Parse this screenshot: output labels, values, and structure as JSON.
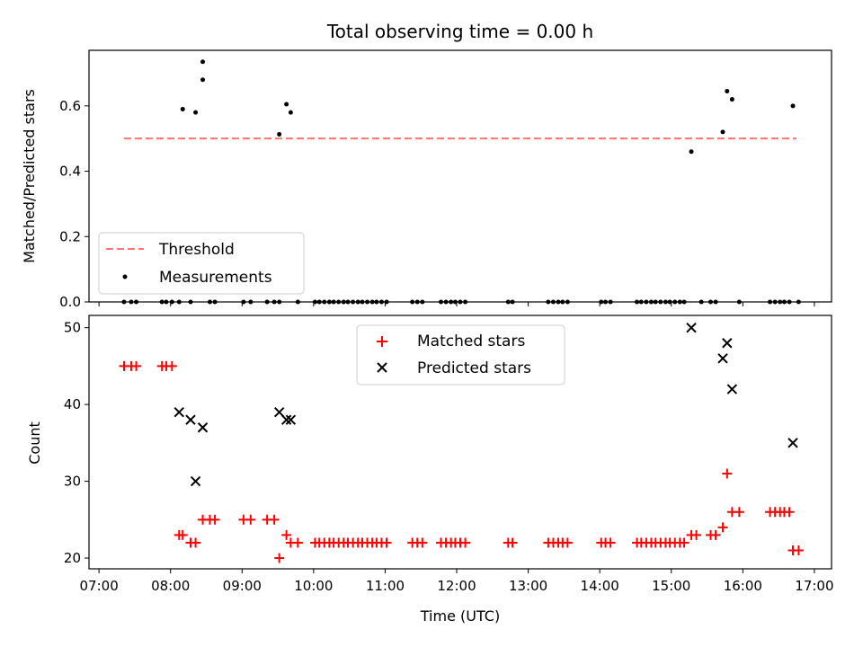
{
  "figure_title": "Total observing time = 0.00 h",
  "x_tick_labels": [
    "07:00",
    "08:00",
    "09:00",
    "10:00",
    "11:00",
    "12:00",
    "13:00",
    "14:00",
    "15:00",
    "16:00",
    "17:00"
  ],
  "colors": {
    "threshold": "#ff7373",
    "measurements": "#000000",
    "matched": "#ff0000",
    "predicted": "#000000"
  },
  "chart_data": [
    {
      "type": "scatter",
      "ylabel": "Matched/Predicted stars",
      "ylim": [
        0,
        0.77
      ],
      "xlim_hours": [
        6.86,
        17.24
      ],
      "y_ticks": [
        0.0,
        0.2,
        0.4,
        0.6
      ],
      "legend": {
        "placement": "lower-left",
        "entries": [
          "Threshold",
          "Measurements"
        ]
      },
      "threshold": {
        "name": "Threshold",
        "value": 0.5,
        "x_range": [
          7.35,
          16.75
        ],
        "style": "dashed"
      },
      "measurements": {
        "name": "Measurements",
        "x": [
          7.35,
          7.45,
          7.52,
          7.88,
          7.94,
          8.02,
          8.12,
          8.17,
          8.28,
          8.35,
          8.45,
          8.55,
          8.62,
          9.02,
          9.12,
          9.35,
          9.45,
          9.52,
          9.62,
          9.68,
          9.78,
          10.02,
          10.08,
          10.15,
          10.22,
          10.28,
          10.35,
          10.42,
          10.48,
          10.55,
          10.62,
          10.68,
          10.75,
          10.82,
          10.88,
          10.95,
          11.02,
          11.38,
          11.45,
          11.52,
          11.78,
          11.85,
          11.92,
          11.98,
          12.05,
          12.12,
          12.72,
          12.78,
          13.28,
          13.35,
          13.42,
          13.48,
          13.55,
          14.02,
          14.08,
          14.15,
          14.52,
          14.58,
          14.65,
          14.72,
          14.78,
          14.85,
          14.92,
          14.98,
          15.05,
          15.12,
          15.18,
          15.28,
          15.42,
          15.55,
          15.62,
          15.72,
          15.78,
          15.85,
          15.95,
          16.38,
          16.45,
          16.52,
          16.58,
          16.65,
          16.7,
          16.78
        ],
        "y": [
          0,
          0,
          0,
          0,
          0,
          0,
          0,
          0.59,
          0,
          0.58,
          0.735,
          0,
          0,
          0,
          0,
          0,
          0,
          0,
          0.605,
          0.58,
          0,
          0,
          0,
          0,
          0,
          0,
          0,
          0,
          0,
          0,
          0,
          0,
          0,
          0,
          0,
          0,
          0,
          0,
          0,
          0,
          0,
          0,
          0,
          0,
          0,
          0,
          0,
          0,
          0,
          0,
          0,
          0,
          0,
          0,
          0,
          0,
          0,
          0,
          0,
          0,
          0,
          0,
          0,
          0,
          0,
          0,
          0,
          0.46,
          0,
          0,
          0,
          0.52,
          0.645,
          0.62,
          0,
          0,
          0,
          0,
          0,
          0,
          0.6,
          0
        ],
        "y_extra_points": [
          {
            "x": 8.45,
            "y": 0.68
          },
          {
            "x": 9.52,
            "y": 0.513
          }
        ]
      }
    },
    {
      "type": "scatter",
      "xlabel": "Time (UTC)",
      "ylabel": "Count",
      "ylim": [
        18.6,
        51.6
      ],
      "xlim_hours": [
        6.86,
        17.24
      ],
      "y_ticks": [
        20,
        30,
        40,
        50
      ],
      "legend": {
        "placement": "upper-center",
        "entries": [
          "Matched stars",
          "Predicted stars"
        ]
      },
      "series": [
        {
          "name": "Matched stars",
          "marker": "plus",
          "x": [
            7.35,
            7.45,
            7.52,
            7.88,
            7.94,
            8.02,
            8.12,
            8.17,
            8.28,
            8.35,
            8.45,
            8.55,
            8.62,
            9.02,
            9.12,
            9.35,
            9.45,
            9.52,
            9.62,
            9.68,
            9.78,
            10.02,
            10.08,
            10.15,
            10.22,
            10.28,
            10.35,
            10.42,
            10.48,
            10.55,
            10.62,
            10.68,
            10.75,
            10.82,
            10.88,
            10.95,
            11.02,
            11.38,
            11.45,
            11.52,
            11.78,
            11.85,
            11.92,
            11.98,
            12.05,
            12.12,
            12.72,
            12.78,
            13.28,
            13.35,
            13.42,
            13.48,
            13.55,
            14.02,
            14.08,
            14.15,
            14.52,
            14.58,
            14.65,
            14.72,
            14.78,
            14.85,
            14.92,
            14.98,
            15.05,
            15.12,
            15.18,
            15.28,
            15.35,
            15.55,
            15.62,
            15.72,
            15.78,
            15.85,
            15.95,
            16.38,
            16.45,
            16.52,
            16.58,
            16.65,
            16.7,
            16.78
          ],
          "y": [
            45,
            45,
            45,
            45,
            45,
            45,
            23,
            23,
            22,
            22,
            25,
            25,
            25,
            25,
            25,
            25,
            25,
            20,
            23,
            22,
            22,
            22,
            22,
            22,
            22,
            22,
            22,
            22,
            22,
            22,
            22,
            22,
            22,
            22,
            22,
            22,
            22,
            22,
            22,
            22,
            22,
            22,
            22,
            22,
            22,
            22,
            22,
            22,
            22,
            22,
            22,
            22,
            22,
            22,
            22,
            22,
            22,
            22,
            22,
            22,
            22,
            22,
            22,
            22,
            22,
            22,
            22,
            23,
            23,
            23,
            23,
            24,
            31,
            26,
            26,
            26,
            26,
            26,
            26,
            26,
            21,
            21
          ]
        },
        {
          "name": "Predicted stars",
          "marker": "x",
          "x": [
            8.12,
            8.28,
            8.35,
            8.45,
            9.52,
            9.62,
            9.68,
            15.28,
            15.72,
            15.78,
            15.85,
            16.7
          ],
          "y": [
            39,
            38,
            30,
            37,
            39,
            38,
            38,
            50,
            46,
            48,
            42,
            35
          ]
        }
      ]
    }
  ]
}
